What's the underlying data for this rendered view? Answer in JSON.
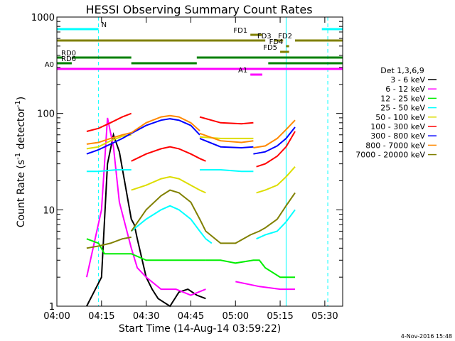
{
  "chart_data": {
    "type": "line",
    "title": "HESSI Observing Summary Count Rates",
    "xlabel": "Start Time (14-Aug-14 03:59:22)",
    "ylabel": "Count Rate (s⁻¹ detector⁻¹)",
    "ylabel_main": "Count Rate (s",
    "ylabel_sup1": "-1",
    "ylabel_mid": " detector",
    "ylabel_sup2": "-1",
    "ylabel_end": ")",
    "yscale": "log",
    "ylim": [
      1,
      1000
    ],
    "xlim_minutes_after_0400": [
      0,
      96
    ],
    "xticks": [
      {
        "label": "04:00",
        "minute": 0
      },
      {
        "label": "04:15",
        "minute": 15
      },
      {
        "label": "04:30",
        "minute": 30
      },
      {
        "label": "04:45",
        "minute": 45
      },
      {
        "label": "05:00",
        "minute": 60
      },
      {
        "label": "05:15",
        "minute": 75
      },
      {
        "label": "05:30",
        "minute": 90
      }
    ],
    "yticks": [
      {
        "label": "1",
        "value": 1
      },
      {
        "label": "10",
        "value": 10
      },
      {
        "label": "100",
        "value": 100
      },
      {
        "label": "1000",
        "value": 1000
      }
    ],
    "legend_title": "Det 1,3,6,9",
    "series": [
      {
        "name": "3 - 6 keV",
        "color": "#000000",
        "segments": [
          [
            [
              10,
              1
            ],
            [
              15,
              2
            ],
            [
              17,
              30
            ],
            [
              19,
              60
            ],
            [
              21,
              40
            ],
            [
              25,
              8
            ],
            [
              26,
              7
            ],
            [
              27,
              5
            ],
            [
              30,
              2
            ],
            [
              32,
              1.5
            ],
            [
              34,
              1.2
            ],
            [
              38,
              1
            ],
            [
              41,
              1.4
            ],
            [
              44,
              1.5
            ],
            [
              47,
              1.3
            ],
            [
              50,
              1.2
            ]
          ]
        ]
      },
      {
        "name": "6 - 12 keV",
        "color": "#ff00ff",
        "segments": [
          [
            [
              10,
              2
            ],
            [
              15,
              10
            ],
            [
              17,
              90
            ],
            [
              19,
              45
            ],
            [
              21,
              12
            ],
            [
              25,
              4
            ],
            [
              27,
              2.5
            ],
            [
              30,
              2
            ],
            [
              35,
              1.5
            ],
            [
              40,
              1.5
            ],
            [
              45,
              1.3
            ],
            [
              50,
              1.5
            ]
          ],
          [
            [
              60,
              1.8
            ],
            [
              68,
              1.6
            ],
            [
              75,
              1.5
            ],
            [
              80,
              1.5
            ]
          ]
        ]
      },
      {
        "name": "12 - 25 keV",
        "color": "#00ee00",
        "segments": [
          [
            [
              10,
              5
            ],
            [
              14,
              4.5
            ],
            [
              16,
              3.5
            ],
            [
              20,
              3.5
            ],
            [
              25,
              3.5
            ],
            [
              30,
              3
            ],
            [
              40,
              3
            ],
            [
              48,
              3
            ],
            [
              50,
              3
            ]
          ],
          [
            [
              50,
              3
            ],
            [
              55,
              3
            ],
            [
              60,
              2.8
            ],
            [
              66,
              3
            ],
            [
              68,
              3
            ],
            [
              70,
              2.5
            ],
            [
              75,
              2
            ],
            [
              80,
              2
            ]
          ]
        ]
      },
      {
        "name": "25 - 50 keV",
        "color": "#00ffff",
        "segments": [
          [
            [
              10,
              25
            ],
            [
              14,
              25
            ],
            [
              20,
              26
            ],
            [
              25,
              26
            ]
          ],
          [
            [
              25,
              6
            ],
            [
              30,
              8
            ],
            [
              35,
              10
            ],
            [
              38,
              11
            ],
            [
              41,
              10
            ],
            [
              45,
              8
            ],
            [
              48,
              6
            ],
            [
              50,
              5
            ],
            [
              52,
              4.5
            ]
          ],
          [
            [
              48,
              26
            ],
            [
              55,
              26
            ],
            [
              62,
              25
            ],
            [
              66,
              25
            ]
          ],
          [
            [
              67,
              5
            ],
            [
              70,
              5.5
            ],
            [
              74,
              6
            ],
            [
              77,
              7.5
            ],
            [
              80,
              10
            ]
          ]
        ]
      },
      {
        "name": "50 - 100 keV",
        "color": "#dddd00",
        "segments": [
          [
            [
              10,
              43
            ],
            [
              14,
              45
            ],
            [
              18,
              52
            ],
            [
              22,
              58
            ],
            [
              25,
              60
            ]
          ],
          [
            [
              25,
              16
            ],
            [
              30,
              18
            ],
            [
              35,
              21
            ],
            [
              38,
              22
            ],
            [
              41,
              21
            ],
            [
              45,
              18
            ],
            [
              48,
              16
            ],
            [
              50,
              15
            ]
          ],
          [
            [
              48,
              57
            ],
            [
              55,
              55
            ],
            [
              62,
              55
            ],
            [
              66,
              55
            ]
          ],
          [
            [
              67,
              15
            ],
            [
              70,
              16
            ],
            [
              74,
              18
            ],
            [
              77,
              22
            ],
            [
              80,
              28
            ]
          ]
        ]
      },
      {
        "name": "100 - 300 keV",
        "color": "#ff0000",
        "segments": [
          [
            [
              10,
              65
            ],
            [
              14,
              70
            ],
            [
              18,
              80
            ],
            [
              22,
              92
            ],
            [
              25,
              100
            ]
          ],
          [
            [
              25,
              32
            ],
            [
              30,
              38
            ],
            [
              35,
              43
            ],
            [
              38,
              45
            ],
            [
              41,
              43
            ],
            [
              45,
              38
            ],
            [
              48,
              34
            ],
            [
              50,
              32
            ]
          ],
          [
            [
              48,
              92
            ],
            [
              55,
              80
            ],
            [
              62,
              78
            ],
            [
              66,
              80
            ]
          ],
          [
            [
              67,
              28
            ],
            [
              70,
              30
            ],
            [
              74,
              36
            ],
            [
              77,
              45
            ],
            [
              80,
              65
            ]
          ]
        ]
      },
      {
        "name": "300 - 800 keV",
        "color": "#0000ff",
        "segments": [
          [
            [
              10,
              38
            ],
            [
              14,
              42
            ],
            [
              18,
              48
            ],
            [
              22,
              55
            ],
            [
              25,
              62
            ]
          ],
          [
            [
              25,
              62
            ],
            [
              30,
              75
            ],
            [
              35,
              85
            ],
            [
              38,
              88
            ],
            [
              41,
              85
            ],
            [
              45,
              75
            ],
            [
              48,
              60
            ]
          ],
          [
            [
              48,
              55
            ],
            [
              55,
              45
            ],
            [
              62,
              44
            ],
            [
              66,
              45
            ]
          ],
          [
            [
              66,
              38
            ],
            [
              70,
              40
            ],
            [
              74,
              46
            ],
            [
              77,
              55
            ],
            [
              80,
              72
            ]
          ]
        ]
      },
      {
        "name": "800 - 7000 keV",
        "color": "#ff8800",
        "segments": [
          [
            [
              10,
              48
            ],
            [
              14,
              50
            ],
            [
              18,
              55
            ],
            [
              22,
              60
            ],
            [
              25,
              63
            ]
          ],
          [
            [
              25,
              63
            ],
            [
              30,
              80
            ],
            [
              35,
              92
            ],
            [
              38,
              95
            ],
            [
              41,
              92
            ],
            [
              45,
              80
            ],
            [
              48,
              66
            ]
          ],
          [
            [
              48,
              62
            ],
            [
              55,
              52
            ],
            [
              62,
              50
            ],
            [
              66,
              52
            ]
          ],
          [
            [
              66,
              44
            ],
            [
              70,
              46
            ],
            [
              74,
              55
            ],
            [
              77,
              68
            ],
            [
              80,
              85
            ]
          ]
        ]
      },
      {
        "name": "7000 - 20000 keV",
        "color": "#808000",
        "segments": [
          [
            [
              10,
              4
            ],
            [
              14,
              4.2
            ],
            [
              18,
              4.5
            ],
            [
              22,
              5
            ],
            [
              25,
              5.2
            ]
          ],
          [
            [
              25,
              6
            ],
            [
              30,
              10
            ],
            [
              35,
              14
            ],
            [
              38,
              16
            ],
            [
              41,
              15
            ],
            [
              45,
              12
            ],
            [
              48,
              8
            ],
            [
              50,
              6
            ],
            [
              55,
              4.5
            ],
            [
              60,
              4.5
            ],
            [
              65,
              5.5
            ],
            [
              68,
              6
            ],
            [
              70,
              6.5
            ],
            [
              74,
              8
            ],
            [
              77,
              11
            ],
            [
              80,
              15
            ]
          ]
        ]
      }
    ],
    "flags": [
      {
        "name": "N",
        "color": "#00ffff",
        "y_row": 1,
        "segments": [
          [
            0,
            14
          ],
          [
            89,
            96
          ]
        ]
      },
      {
        "name": "FD1",
        "color": "#808000",
        "y_row": 2,
        "segments": [
          [
            65,
            69
          ]
        ]
      },
      {
        "name": "FD2",
        "color": "#808000",
        "y_row": 3,
        "segments": [
          [
            0,
            70
          ],
          [
            80,
            96
          ]
        ]
      },
      {
        "name": "FD3",
        "color": "#808000",
        "y_row": 3,
        "segments": [
          [
            73,
            76
          ]
        ]
      },
      {
        "name": "FD4",
        "color": "#808000",
        "y_row": 4,
        "segments": [
          [
            77,
            78
          ]
        ]
      },
      {
        "name": "FD5",
        "color": "#808000",
        "y_row": 5,
        "segments": [
          [
            75,
            78
          ]
        ]
      },
      {
        "name": "RD0",
        "color": "#008000",
        "y_row": 6,
        "segments": [
          [
            0,
            2
          ],
          [
            5,
            25
          ],
          [
            47,
            96
          ]
        ]
      },
      {
        "name": "RD6",
        "color": "#008000",
        "y_row": 7,
        "segments": [
          [
            0,
            5
          ],
          [
            25,
            47
          ],
          [
            71,
            96
          ]
        ]
      },
      {
        "name": "A0",
        "color": "#ff00ff",
        "y_row": 8,
        "segments": [
          [
            0,
            96
          ]
        ]
      },
      {
        "name": "A1",
        "color": "#ff00ff",
        "y_row": 9,
        "segments": [
          [
            65,
            69
          ]
        ]
      }
    ],
    "vlines": [
      {
        "minute": 0,
        "color": "#00ffff",
        "style": "solid"
      },
      {
        "minute": 14,
        "color": "#00ffff",
        "style": "dashed"
      },
      {
        "minute": 77,
        "color": "#00ffff",
        "style": "solid"
      },
      {
        "minute": 91,
        "color": "#00ffff",
        "style": "dashed"
      }
    ],
    "grid": false,
    "legend_position": "right"
  },
  "footer": {
    "date_stamp": "4-Nov-2016 15:48"
  }
}
